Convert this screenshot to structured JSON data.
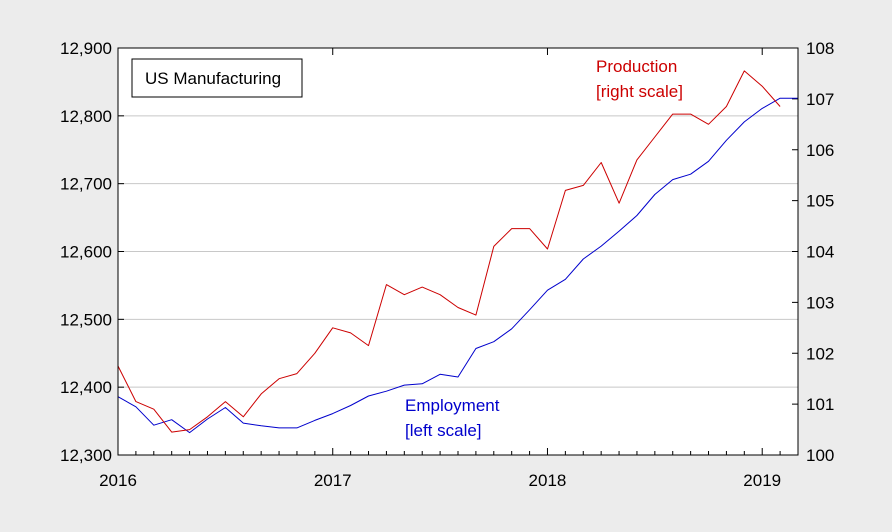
{
  "chart_data": {
    "type": "line",
    "title": "US Manufacturing",
    "x_range": [
      "2016-01",
      "2019-03"
    ],
    "x_ticks": [
      "2016",
      "2017",
      "2018",
      "2019"
    ],
    "grid": true,
    "left_axis": {
      "ylim": [
        12300,
        12900
      ],
      "ticks": [
        "12,300",
        "12,400",
        "12,500",
        "12,600",
        "12,700",
        "12,800",
        "12,900"
      ]
    },
    "right_axis": {
      "ylim": [
        100,
        108
      ],
      "ticks": [
        "100",
        "101",
        "102",
        "103",
        "104",
        "105",
        "106",
        "107",
        "108"
      ]
    },
    "series": [
      {
        "name": "Employment",
        "axis": "left",
        "color": "#0000cc",
        "label_lines": [
          "Employment",
          "[left scale]"
        ],
        "x": [
          "2016-01",
          "2016-02",
          "2016-03",
          "2016-04",
          "2016-05",
          "2016-06",
          "2016-07",
          "2016-08",
          "2016-09",
          "2016-10",
          "2016-11",
          "2016-12",
          "2017-01",
          "2017-02",
          "2017-03",
          "2017-04",
          "2017-05",
          "2017-06",
          "2017-07",
          "2017-08",
          "2017-09",
          "2017-10",
          "2017-11",
          "2017-12",
          "2018-01",
          "2018-02",
          "2018-03",
          "2018-04",
          "2018-05",
          "2018-06",
          "2018-07",
          "2018-08",
          "2018-09",
          "2018-10",
          "2018-11",
          "2018-12",
          "2019-01",
          "2019-02",
          "2019-03"
        ],
        "values": [
          12386,
          12371,
          12344,
          12352,
          12333,
          12353,
          12370,
          12347,
          12343,
          12340,
          12340,
          12351,
          12361,
          12373,
          12387,
          12394,
          12403,
          12405,
          12419,
          12415,
          12457,
          12467,
          12486,
          12514,
          12543,
          12559,
          12589,
          12608,
          12630,
          12653,
          12684,
          12706,
          12714,
          12733,
          12764,
          12791,
          12811,
          12826,
          12826
        ]
      },
      {
        "name": "Production",
        "axis": "right",
        "color": "#cc0000",
        "label_lines": [
          "Production",
          "[right scale]"
        ],
        "x": [
          "2016-01",
          "2016-02",
          "2016-03",
          "2016-04",
          "2016-05",
          "2016-06",
          "2016-07",
          "2016-08",
          "2016-09",
          "2016-10",
          "2016-11",
          "2016-12",
          "2017-01",
          "2017-02",
          "2017-03",
          "2017-04",
          "2017-05",
          "2017-06",
          "2017-07",
          "2017-08",
          "2017-09",
          "2017-10",
          "2017-11",
          "2017-12",
          "2018-01",
          "2018-02",
          "2018-03",
          "2018-04",
          "2018-05",
          "2018-06",
          "2018-07",
          "2018-08",
          "2018-09",
          "2018-10",
          "2018-11",
          "2018-12",
          "2019-01",
          "2019-02"
        ],
        "values": [
          101.75,
          101.05,
          100.9,
          100.45,
          100.5,
          100.75,
          101.05,
          100.75,
          101.2,
          101.5,
          101.6,
          102.0,
          102.5,
          102.4,
          102.15,
          103.35,
          103.15,
          103.3,
          103.15,
          102.9,
          102.75,
          104.1,
          104.45,
          104.45,
          104.05,
          105.2,
          105.3,
          105.75,
          104.95,
          105.8,
          106.25,
          106.7,
          106.7,
          106.5,
          106.85,
          107.55,
          107.25,
          106.85
        ]
      }
    ]
  }
}
